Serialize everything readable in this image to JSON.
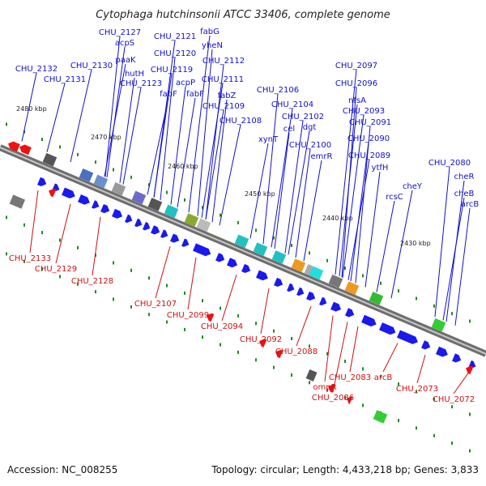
{
  "title": "Cytophaga hutchinsonii ATCC 33406, complete genome",
  "footer": {
    "accession": "Accession: NC_008255",
    "summary": "Topology: circular; Length: 4,433,218 bp; Genes: 3,833"
  },
  "colors": {
    "forward_label": "#1010cc",
    "reverse_label": "#cc1010",
    "forward_gene": "#1a1aee",
    "reverse_gene": "#ee1111",
    "backbone": "#888888",
    "tick": "#1e8c1e"
  },
  "scale_labels": [
    "2480 kbp",
    "2470 kbp",
    "2460 kbp",
    "2450 kbp",
    "2440 kbp",
    "2430 kbp"
  ],
  "forward_genes": [
    "CHU_2132",
    "CHU_2131",
    "CHU_2130",
    "CHU_2127",
    "acpS",
    "paaK",
    "hutH",
    "CHU_2123",
    "CHU_2121",
    "CHU_2120",
    "CHU_2119",
    "fabF",
    "acpP",
    "fabF",
    "fabG",
    "yheN",
    "CHU_2112",
    "CHU_2111",
    "fabZ",
    "CHU_2109",
    "CHU_2108",
    "CHU_2106",
    "xynT",
    "CHU_2104",
    "cel",
    "CHU_2102",
    "dgt",
    "CHU_2100",
    "emrR",
    "CHU_2097",
    "CHU_2096",
    "nfsA",
    "CHU_2093",
    "CHU_2091",
    "CHU_2090",
    "CHU_2089",
    "ytfH",
    "rcsC",
    "cheY",
    "CHU_2080",
    "cheR",
    "cheB",
    "arcB"
  ],
  "reverse_genes": [
    "CHU_2133",
    "CHU_2129",
    "CHU_2128",
    "CHU_2107",
    "CHU_2099",
    "CHU_2094",
    "CHU_2092",
    "CHU_2088",
    "ompR",
    "CHU_2086",
    "CHU_2083",
    "arcB",
    "CHU_2073",
    "CHU_2072"
  ]
}
